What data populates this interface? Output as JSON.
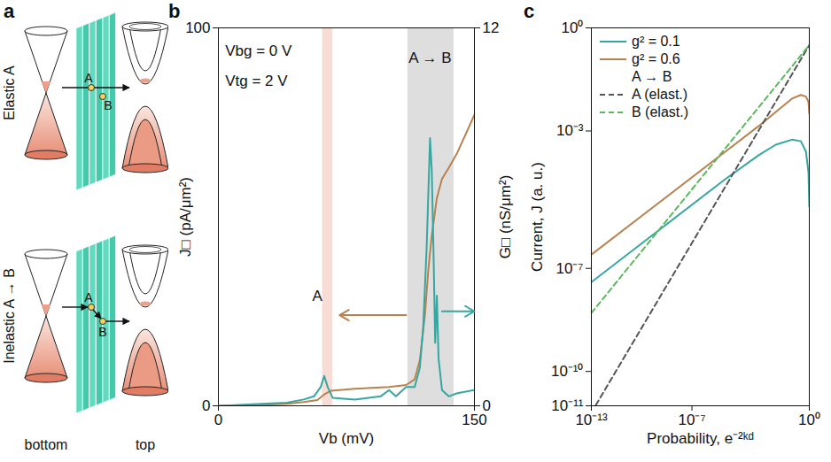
{
  "diagram": {
    "panel_label": "a",
    "rows": [
      {
        "label": "Elastic A",
        "points": [
          "A",
          "B"
        ]
      },
      {
        "label": "Inelastic A → B",
        "points": [
          "A",
          "B"
        ]
      }
    ],
    "layers": [
      "bottom",
      "top"
    ]
  },
  "chart_data": [
    {
      "panel_label": "b",
      "type": "line",
      "x_label": "Vb (mV)",
      "y_label": "J□ (pA/μm²)",
      "y2_label": "G□ (nS/μm²)",
      "xlim": [
        0,
        150
      ],
      "xticks": [
        0,
        150
      ],
      "ylim": [
        0,
        100
      ],
      "yticks": [
        0,
        100
      ],
      "y2lim": [
        0,
        12
      ],
      "y2ticks": [
        0,
        12
      ],
      "regions": [
        {
          "x": [
            61,
            67
          ],
          "color": "#f8ddd7"
        },
        {
          "x": [
            111,
            138
          ],
          "color": "#dedede"
        }
      ],
      "annotations": [
        {
          "text": "Vbg = 0 V",
          "x": 4,
          "y": 94
        },
        {
          "text": "Vtg = 2 V",
          "x": 4,
          "y": 86
        },
        {
          "text": "A → B",
          "x": 124,
          "y": 92
        },
        {
          "text": "A",
          "x": 58,
          "y": 29
        }
      ],
      "arrows": [
        {
          "x": [
            110,
            71
          ],
          "y": 24,
          "color": "#b8814f"
        },
        {
          "x": [
            131,
            150
          ],
          "y": 3,
          "axis": "y2",
          "color": "#35a6a0"
        }
      ],
      "series": [
        {
          "color": "#b8814f",
          "x": [
            0,
            20,
            40,
            50,
            58,
            62,
            66,
            80,
            100,
            110,
            115,
            118,
            121,
            123,
            125,
            128,
            131,
            135,
            140,
            145,
            150
          ],
          "values": [
            0,
            0.2,
            0.5,
            1,
            1.5,
            3,
            4,
            4.5,
            5,
            5.5,
            7,
            12,
            24,
            36,
            45,
            55,
            60,
            63,
            67,
            72,
            77
          ]
        },
        {
          "color": "#35a6a0",
          "axis": "y2",
          "x": [
            0,
            20,
            40,
            50,
            56,
            60,
            62,
            64,
            67,
            80,
            95,
            100,
            104,
            110,
            115,
            118,
            120,
            122,
            124,
            125,
            126,
            127,
            128,
            129,
            131,
            135,
            140,
            150
          ],
          "values": [
            0,
            0.05,
            0.1,
            0.2,
            0.3,
            0.6,
            0.95,
            0.6,
            0.25,
            0.2,
            0.3,
            0.5,
            0.3,
            0.6,
            0.6,
            1.2,
            2.5,
            5,
            8.5,
            7.5,
            5,
            2,
            3.5,
            1.5,
            0.5,
            0.3,
            0.4,
            0.5
          ]
        }
      ]
    },
    {
      "panel_label": "c",
      "type": "line",
      "log": true,
      "x_label": "Probability, e⁻²ᵏᵈ",
      "y_label": "Current, J (a. u.)",
      "xlim": [
        1e-13,
        1
      ],
      "xticks": [
        {
          "value": 1e-13,
          "label": "10⁻¹³"
        },
        {
          "value": 1e-07,
          "label": "10⁻⁷"
        },
        {
          "value": 1,
          "label": "10⁰"
        }
      ],
      "ylim": [
        1e-11,
        1
      ],
      "yticks": [
        {
          "value": 1e-11,
          "label": "10⁻¹¹"
        },
        {
          "value": 1e-10,
          "label": "10⁻¹⁰"
        },
        {
          "value": 1e-07,
          "label": "10⁻⁷"
        },
        {
          "value": 0.001,
          "label": "10⁻³"
        },
        {
          "value": 1,
          "label": "10⁰"
        }
      ],
      "legend": "top-left",
      "annotations": [
        {
          "text": "A → B"
        }
      ],
      "series": [
        {
          "name": "g² = 0.1",
          "color": "#35a6a0",
          "line_style": "solid",
          "x": [
            1e-13,
            1e-09,
            1e-05,
            0.001,
            0.01,
            0.1,
            0.316,
            0.631,
            0.891,
            1
          ],
          "values": [
            3.98e-08,
            1.26e-06,
            3.98e-05,
            0.0002,
            0.000398,
            0.000562,
            0.000501,
            0.000251,
            6.31e-05,
            6.31e-06
          ]
        },
        {
          "name": "g² = 0.6",
          "color": "#b8814f",
          "line_style": "solid",
          "x": [
            1e-13,
            1e-09,
            1e-05,
            0.001,
            0.01,
            0.1,
            0.316,
            0.631,
            0.891,
            1
          ],
          "values": [
            2.51e-07,
            7.94e-06,
            0.000251,
            0.00141,
            0.00355,
            0.00891,
            0.0112,
            0.01,
            0.00708,
            0.00316
          ]
        },
        {
          "name": "A (elast.)",
          "color": "#555555",
          "line_style": "dashed",
          "x": [
            1e-13,
            1
          ],
          "values": [
            6.31e-12,
            0.316
          ]
        },
        {
          "name": "B (elast.)",
          "color": "#5cb85c",
          "line_style": "dashed",
          "x": [
            1e-13,
            1
          ],
          "values": [
            5.01e-09,
            0.316
          ]
        }
      ]
    }
  ]
}
